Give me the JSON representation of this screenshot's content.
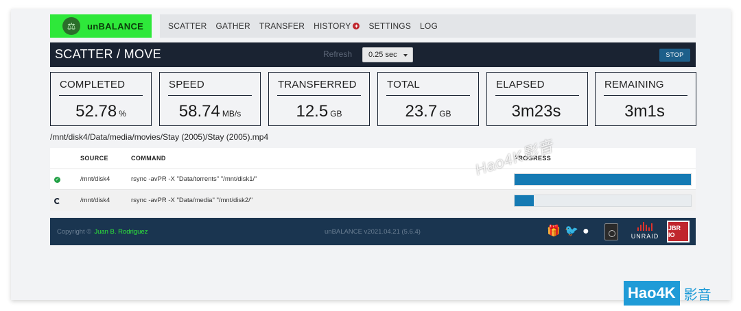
{
  "app": {
    "brand": "unBALANCE",
    "logo_icon": "scale-icon"
  },
  "nav": {
    "items": [
      {
        "label": "SCATTER"
      },
      {
        "label": "GATHER"
      },
      {
        "label": "TRANSFER"
      },
      {
        "label": "HISTORY",
        "badge_icon": "plus-circle-icon",
        "badge_glyph": "+"
      },
      {
        "label": "SETTINGS"
      },
      {
        "label": "LOG"
      }
    ]
  },
  "header": {
    "title": "SCATTER / MOVE",
    "refresh_label": "Refresh",
    "refresh_value": "0.25 sec",
    "stop_label": "STOP"
  },
  "stats": [
    {
      "label": "COMPLETED",
      "value": "52.78",
      "unit": "%"
    },
    {
      "label": "SPEED",
      "value": "58.74",
      "unit": "MB/s"
    },
    {
      "label": "TRANSFERRED",
      "value": "12.5",
      "unit": "GB"
    },
    {
      "label": "TOTAL",
      "value": "23.7",
      "unit": "GB"
    },
    {
      "label": "ELAPSED",
      "value": "3m23s",
      "unit": ""
    },
    {
      "label": "REMAINING",
      "value": "3m1s",
      "unit": ""
    }
  ],
  "current_file": "/mnt/disk4/Data/media/movies/Stay (2005)/Stay (2005).mp4",
  "table": {
    "headers": {
      "source": "SOURCE",
      "command": "COMMAND",
      "progress": "PROGRESS"
    },
    "rows": [
      {
        "status": "done",
        "status_glyph": "✓",
        "source": "/mnt/disk4",
        "command": "rsync -avPR -X \"Data/torrents\" \"/mnt/disk1/\"",
        "progress_fraction": 1.0
      },
      {
        "status": "in-progress",
        "source": "/mnt/disk4",
        "command": "rsync -avPR -X \"Data/media\" \"/mnt/disk2/\"",
        "progress_fraction": 0.11
      }
    ]
  },
  "footer": {
    "copyright": "Copyright ©",
    "author": "Juan B. Rodriguez",
    "version": "unBALANCE v2021.04.21 (5.6.4)",
    "gift_glyph": "🎁",
    "twitter_glyph": "🐦",
    "github_glyph": "●",
    "unraid_label": "UNRAID",
    "jbr_label": "JBR IO"
  },
  "watermark": {
    "diagonal": "Hao4K影音",
    "badge_latin": "Hao4K",
    "badge_cjk": "影音"
  },
  "colors": {
    "brand_green": "#2ee83a",
    "header_dark": "#1a2332",
    "accent_blue": "#157ab3",
    "footer": "#1a3550",
    "stop_button": "#1d5f8a"
  }
}
